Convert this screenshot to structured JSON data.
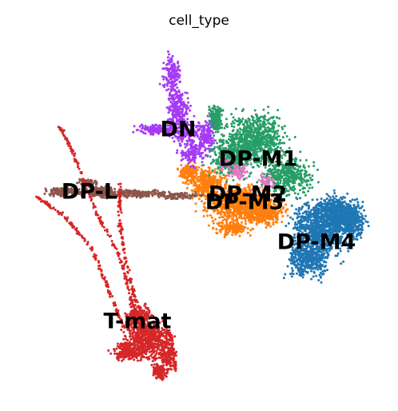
{
  "chart_data": {
    "type": "scatter",
    "title": "cell_type",
    "xlabel": "",
    "ylabel": "",
    "axes_visible": false,
    "grid": false,
    "legend": "on data",
    "series": [
      {
        "name": "DN",
        "color": "#a63af5"
      },
      {
        "name": "DP-L",
        "color": "#8c564b"
      },
      {
        "name": "DP-M1",
        "color": "#279e68"
      },
      {
        "name": "DP-M2",
        "color": "#e377c2"
      },
      {
        "name": "DP-M3",
        "color": "#ff7f0e"
      },
      {
        "name": "DP-M4",
        "color": "#1f77b4"
      },
      {
        "name": "T-mat",
        "color": "#d62728"
      }
    ]
  }
}
